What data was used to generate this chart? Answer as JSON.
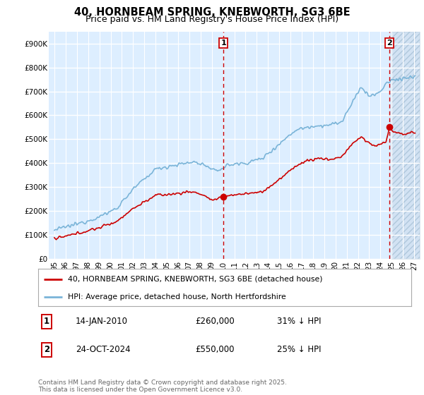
{
  "title": "40, HORNBEAM SPRING, KNEBWORTH, SG3 6BE",
  "subtitle": "Price paid vs. HM Land Registry's House Price Index (HPI)",
  "legend_line1": "40, HORNBEAM SPRING, KNEBWORTH, SG3 6BE (detached house)",
  "legend_line2": "HPI: Average price, detached house, North Hertfordshire",
  "annotation1_label": "1",
  "annotation1_date": "14-JAN-2010",
  "annotation1_price": "£260,000",
  "annotation1_hpi": "31% ↓ HPI",
  "annotation2_label": "2",
  "annotation2_date": "24-OCT-2024",
  "annotation2_price": "£550,000",
  "annotation2_hpi": "25% ↓ HPI",
  "sale1_x": 2010.04,
  "sale1_y": 260000,
  "sale2_x": 2024.81,
  "sale2_y": 550000,
  "hpi_color": "#7ab4d8",
  "price_color": "#cc0000",
  "dashed_line_color": "#cc0000",
  "background_color": "#ffffff",
  "plot_bg_color": "#ddeeff",
  "grid_color": "#ffffff",
  "hatch_color": "#c8d8e8",
  "ylim_min": 0,
  "ylim_max": 950000,
  "xlim_min": 1994.5,
  "xlim_max": 2027.5,
  "data_end_x": 2025.0,
  "yticks": [
    0,
    100000,
    200000,
    300000,
    400000,
    500000,
    600000,
    700000,
    800000,
    900000
  ],
  "ytick_labels": [
    "£0",
    "£100K",
    "£200K",
    "£300K",
    "£400K",
    "£500K",
    "£600K",
    "£700K",
    "£800K",
    "£900K"
  ],
  "copyright_text": "Contains HM Land Registry data © Crown copyright and database right 2025.\nThis data is licensed under the Open Government Licence v3.0.",
  "title_fontsize": 10.5,
  "subtitle_fontsize": 9,
  "tick_fontsize": 7.5
}
